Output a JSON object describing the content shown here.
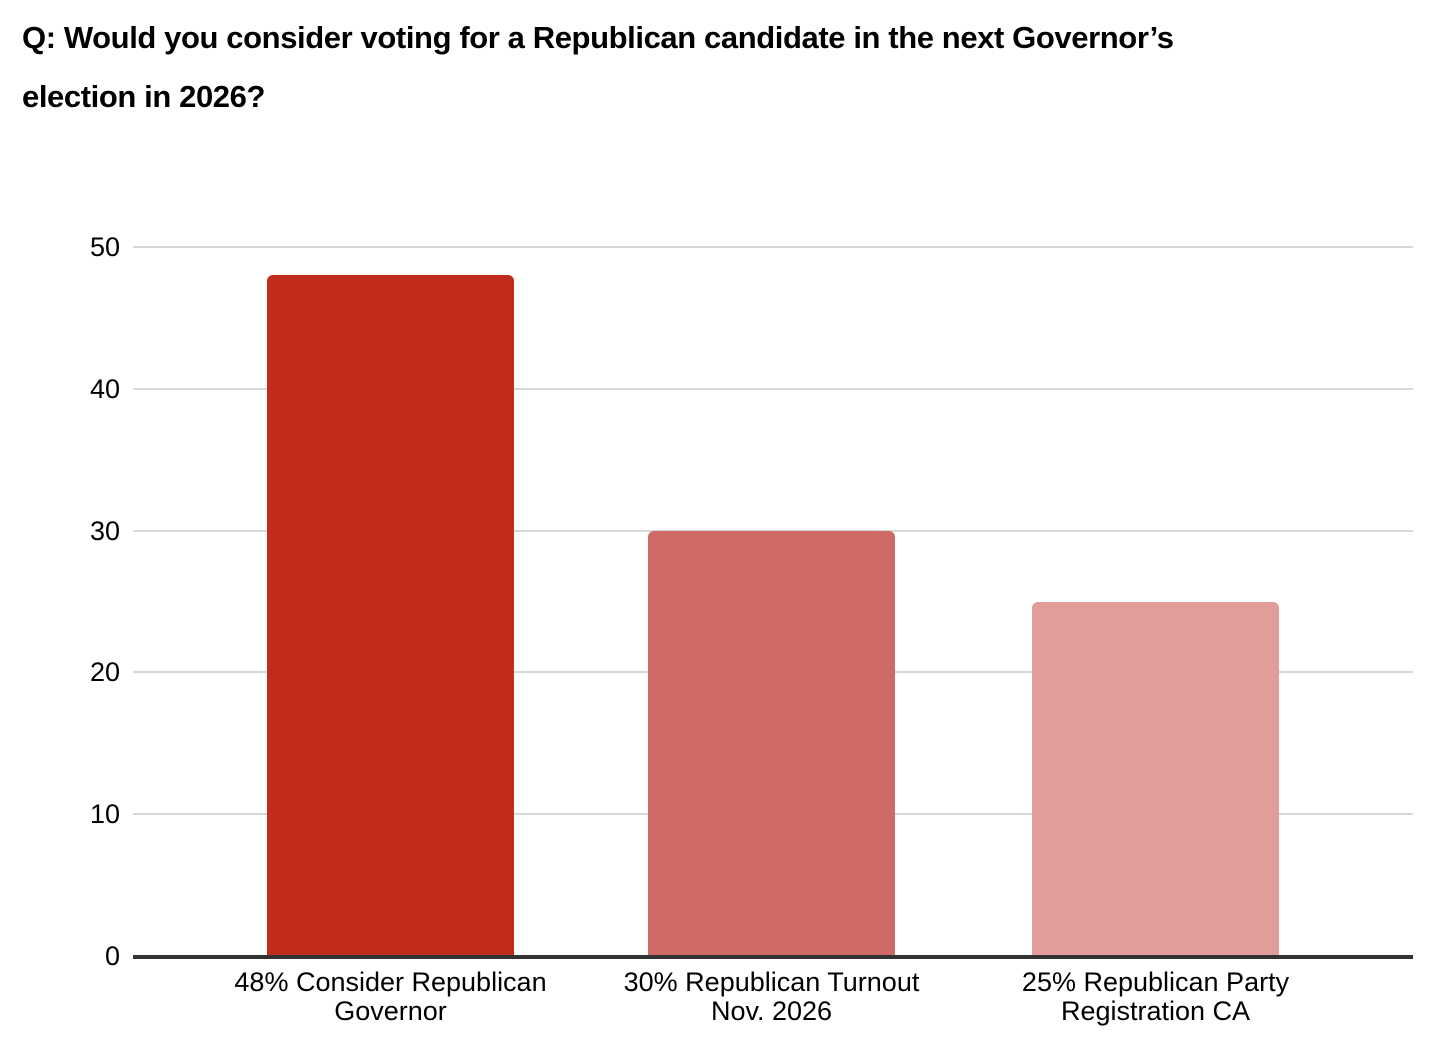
{
  "title": {
    "text": "Q: Would you consider voting for a Republican candidate in the next Governor’s election in 2026?",
    "line1": "Q: Would you consider voting for a Republican candidate in the next Governor’s",
    "line2": "election in 2026?"
  },
  "chart_data": {
    "type": "bar",
    "title": "Q: Would you consider voting for a Republican candidate in the next Governor’s election in 2026?",
    "categories": [
      "48% Consider Republican Governor",
      "30% Republican Turnout Nov. 2026",
      "25% Republican Party Registration CA"
    ],
    "values": [
      48,
      30,
      25
    ],
    "bars": [
      {
        "label_line1": "48% Consider Republican",
        "label_line2": "Governor",
        "value": 48,
        "color": "#c02b1c"
      },
      {
        "label_line1": "30% Republican Turnout",
        "label_line2": "Nov. 2026",
        "value": 30,
        "color": "#ce6b66"
      },
      {
        "label_line1": "25% Republican Party",
        "label_line2": "Registration CA",
        "value": 25,
        "color": "#e29d9b"
      }
    ],
    "xlabel": "",
    "ylabel": "",
    "ylim": [
      0,
      50
    ],
    "yticks": [
      0,
      10,
      20,
      30,
      40,
      50
    ],
    "grid": true,
    "legend": false,
    "colors": {
      "gridline": "#d7d7d7",
      "baseline": "#323232",
      "text": "#000000",
      "background": "#ffffff"
    }
  }
}
